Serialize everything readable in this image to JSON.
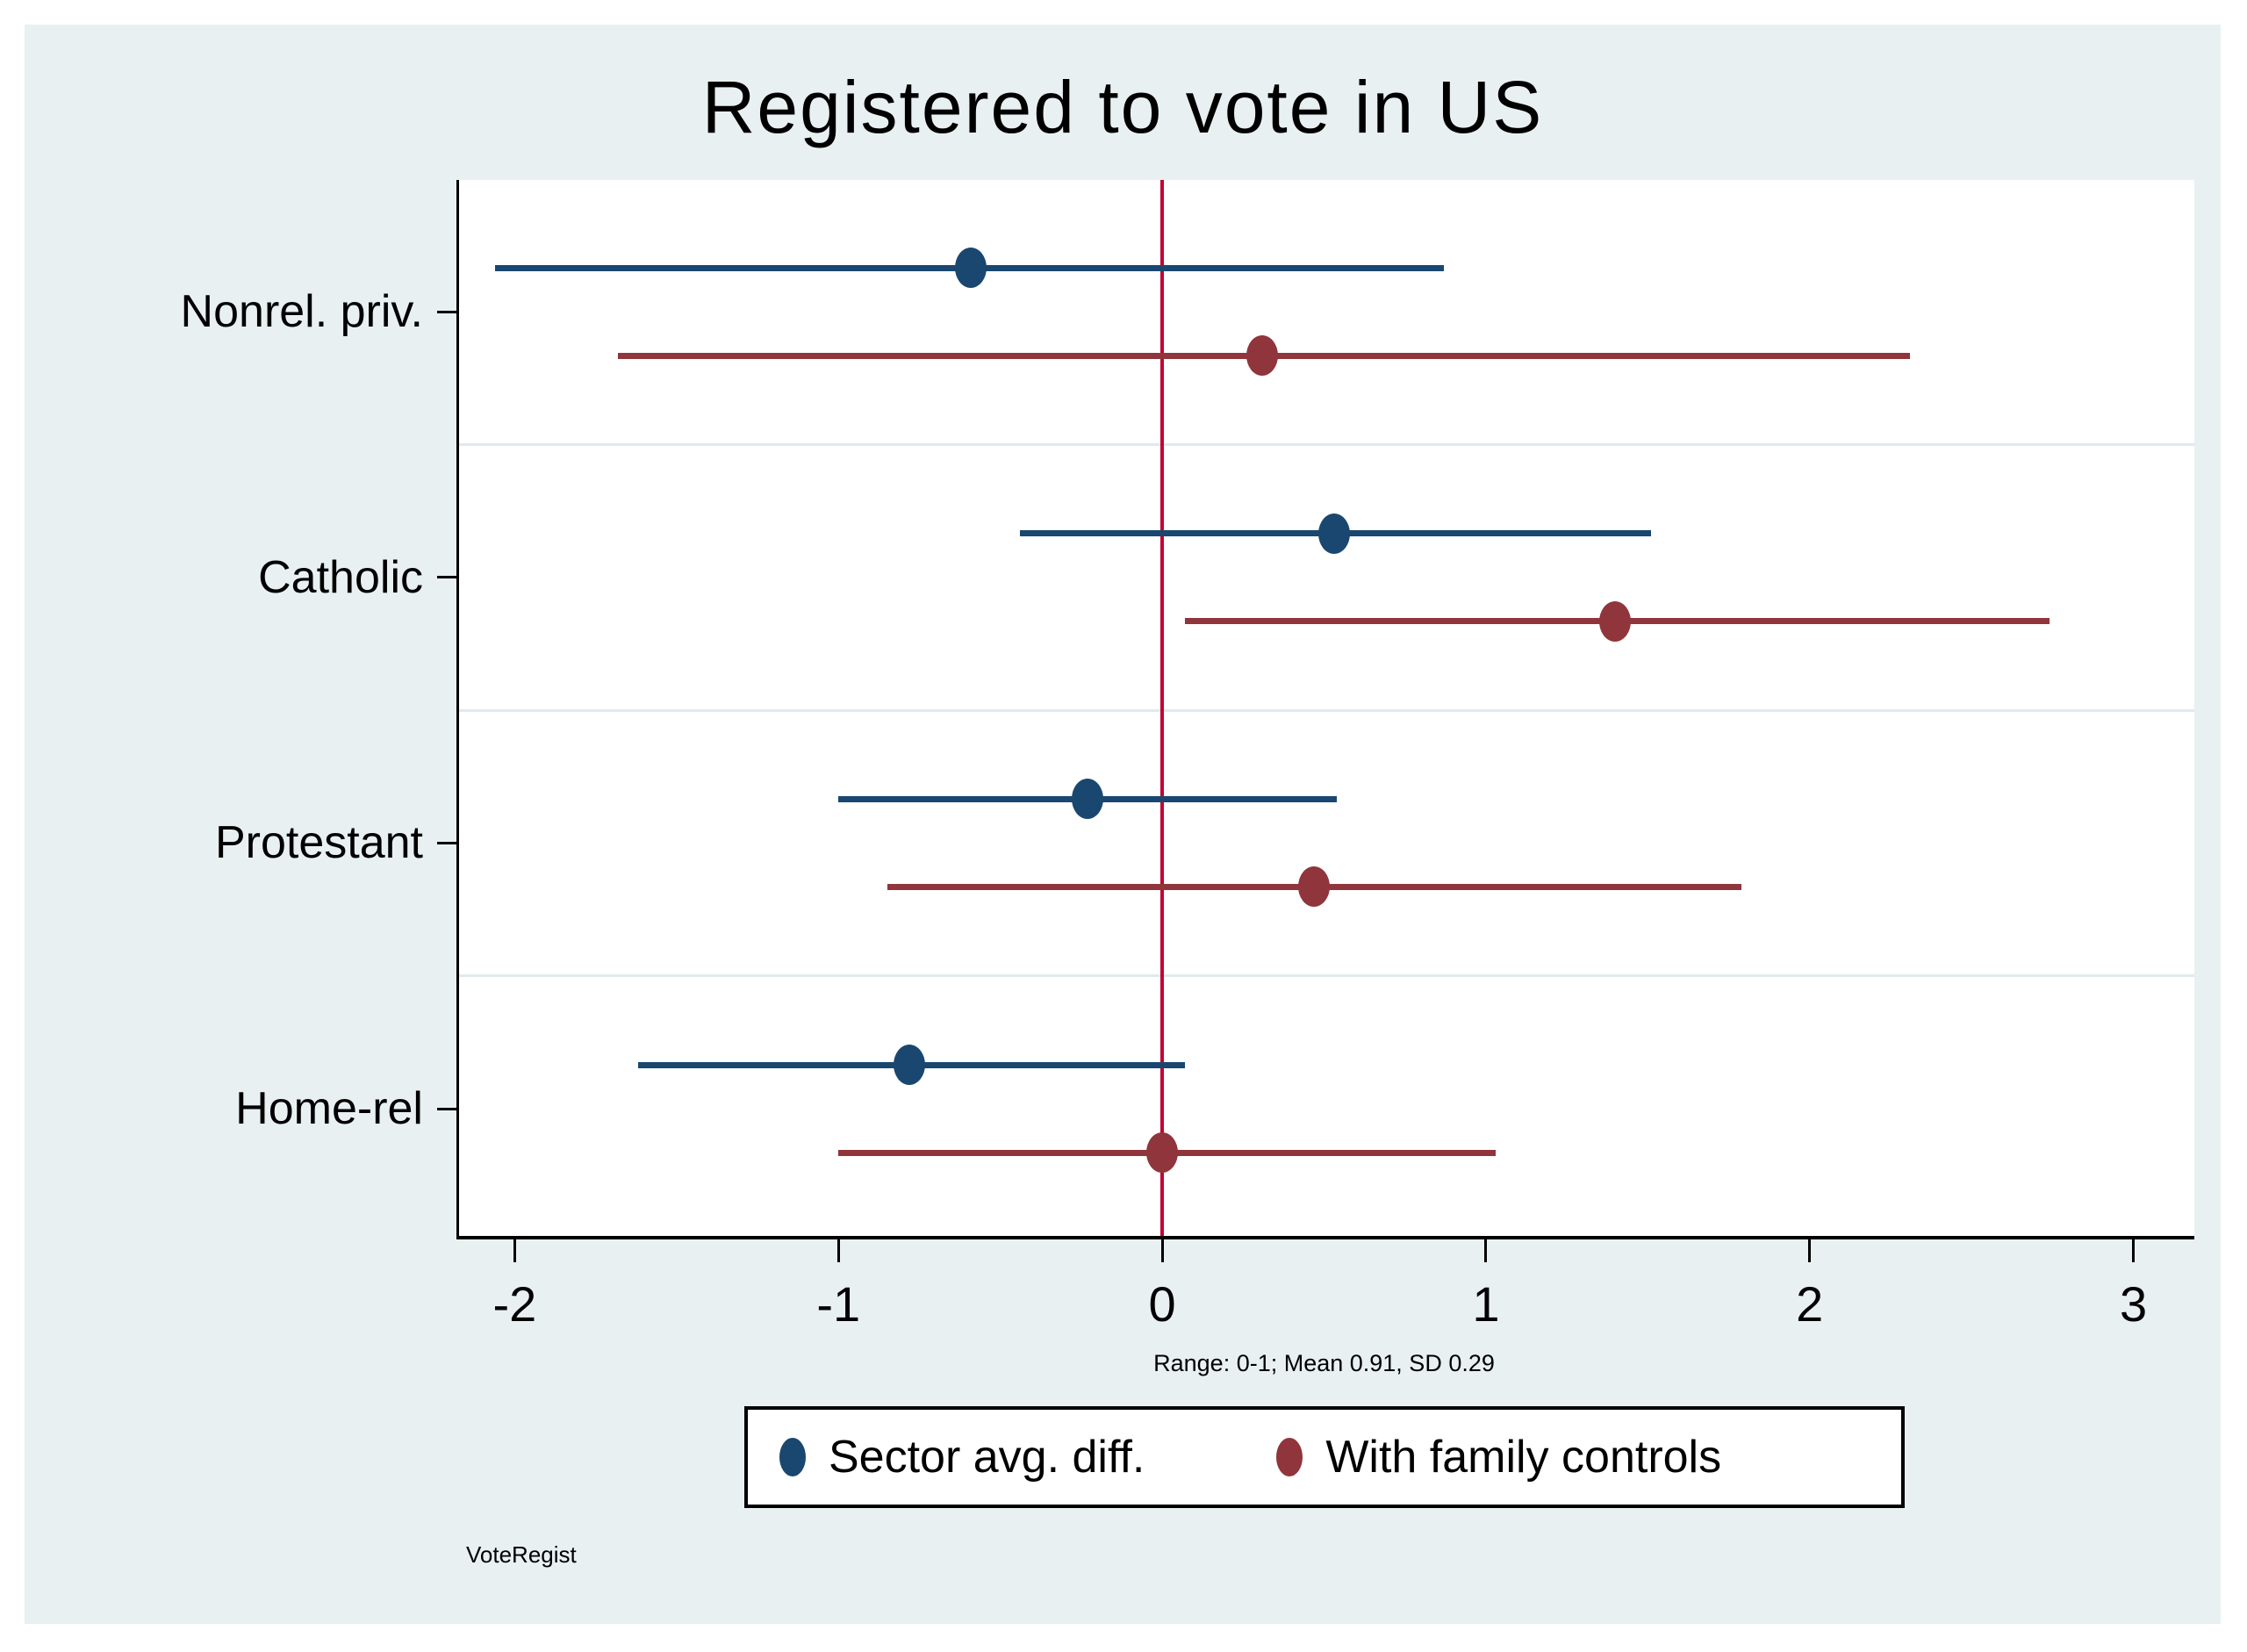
{
  "chart_data": {
    "type": "scatter",
    "subtype": "coefficient-plot-with-confidence-intervals",
    "title": "Registered to vote in US",
    "categories": [
      "Nonrel. priv.",
      "Catholic",
      "Protestant",
      "Home-rel"
    ],
    "series": [
      {
        "name": "Sector avg. diff.",
        "color": "#1a476f",
        "points": [
          {
            "category": "Nonrel. priv.",
            "est": -0.59,
            "lo": -2.06,
            "hi": 0.87
          },
          {
            "category": "Catholic",
            "est": 0.53,
            "lo": -0.44,
            "hi": 1.51
          },
          {
            "category": "Protestant",
            "est": -0.23,
            "lo": -1.0,
            "hi": 0.54
          },
          {
            "category": "Home-rel",
            "est": -0.78,
            "lo": -1.62,
            "hi": 0.07
          }
        ]
      },
      {
        "name": "With family controls",
        "color": "#90353b",
        "points": [
          {
            "category": "Nonrel. priv.",
            "est": 0.31,
            "lo": -1.68,
            "hi": 2.31
          },
          {
            "category": "Catholic",
            "est": 1.4,
            "lo": 0.07,
            "hi": 2.74
          },
          {
            "category": "Protestant",
            "est": 0.47,
            "lo": -0.85,
            "hi": 1.79
          },
          {
            "category": "Home-rel",
            "est": 0.0,
            "lo": -1.0,
            "hi": 1.03
          }
        ]
      }
    ],
    "xticks": [
      -2,
      -1,
      0,
      1,
      2,
      3
    ],
    "xlim": [
      -2.18,
      3.18
    ],
    "refline_x": 0,
    "refline_color": "#c10534",
    "grid_color": "#e0eaee",
    "plot_bg": "#ffffff",
    "figure_bg": "#e9f0f2",
    "legend_position": "bottom",
    "grid": "horizontal-between-categories",
    "xnote": "Range: 0-1; Mean 0.91, SD 0.29",
    "footnote": "VoteRegist"
  }
}
